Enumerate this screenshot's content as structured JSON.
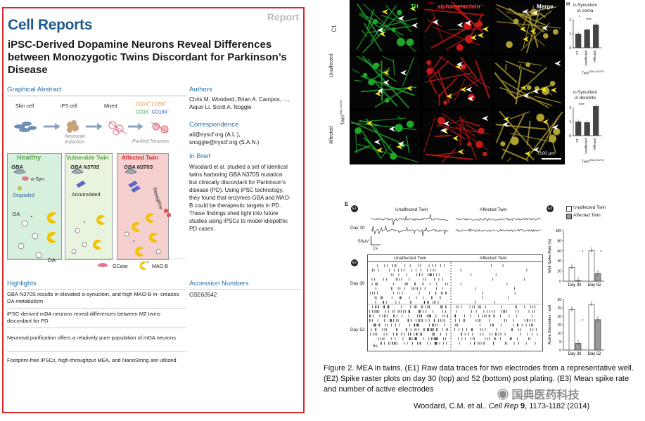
{
  "paper": {
    "journal": "Cell Reports",
    "tag": "Report",
    "title": "iPSC-Derived Dopamine Neurons Reveal Differences between Monozygotic Twins Discordant for Parkinson’s Disease",
    "graphical_abstract_heading": "Graphical Abstract",
    "ga": {
      "skin_cell": "Skin cell",
      "ips_cell": "iPS cell",
      "mixed": "Mixed",
      "neuronal_induction_1": "Neuronal",
      "neuronal_induction_2": "induction",
      "purified_neurons": "Purified  Neurons",
      "markers": [
        "CD24",
        "CD56",
        "CD15",
        "CD184"
      ],
      "panels": [
        {
          "title": "Healthy",
          "gene": "GBA",
          "lines": [
            "α-Syn",
            "Degraded"
          ],
          "da": "DA",
          "color": "#5aa84e"
        },
        {
          "title": "Vulnerable Twin",
          "gene": "GBA N370S",
          "lines": [
            "Accumulated"
          ],
          "da": "",
          "color": "#5aa84e"
        },
        {
          "title": "Affected Twin",
          "gene": "GBA N370S",
          "lines": [
            "Rasagiline"
          ],
          "da": "",
          "color": "#d9262c"
        }
      ],
      "bottom_da": "DA",
      "legend_gcase": "GCase",
      "legend_maob": "MAO-B"
    },
    "authors_heading": "Authors",
    "authors_line1": "Chris M. Woodard, Brian A. Campos, ...,",
    "authors_line2": "Aiqun Li, Scott A. Noggle",
    "correspondence_heading": "Correspondence",
    "correspondence_line1": "ali@nyscf.org (A.L.),",
    "correspondence_line2": "snoggle@nyscf.org (S.A.N.)",
    "in_brief_heading": "In Brief",
    "in_brief_lines": [
      "Woodard et al. studied a set of identical",
      "twins harboring GBA N370S mutation",
      "but clinically discordant for Parkinson’s",
      "disease (PD). Using iPSC technology,",
      "they found that enzymes GBA and MAO-",
      "B could be therapeutic targets in PD.",
      "These findings shed light into future",
      "studies using iPSCs to model idiopathic",
      "PD cases."
    ],
    "highlights_heading": "Highlights",
    "highlights": [
      "GBA N370S results in elevated α-synuclein, and high MAO-B in- creases DA metabolism",
      "iPSC-derived mDA neurons reveal differences between MZ twins discordant for PD",
      "Neuronal purification offers a relatively pure population of mDA neurons",
      "Footprint-free iPSCs, high-throughput MEA, and NanoString are utilized"
    ],
    "accession_heading": "Accession Numbers",
    "accession": "GSE62642"
  },
  "figure_g": {
    "panel_letter": "G",
    "col_labels": [
      "TH",
      "alpha-synuclein",
      "Merge"
    ],
    "col_colors": [
      "#3fd14a",
      "#ff4040",
      "#ffffff"
    ],
    "row_labels": [
      "C1",
      "Unaffected",
      "Affected"
    ],
    "twin_label": "Twin",
    "twin_sup": "GBA N370S",
    "scale_bar": "100 μm"
  },
  "figure_h": {
    "panel_letter": "H",
    "soma_title_1": "α-Synuclein",
    "soma_title_2": "in soma",
    "dendrite_title_1": "α-Synuclein",
    "dendrite_title_2": "in dendrite",
    "twin_label": "Twin",
    "twin_sup": "GBA N370S",
    "categories": [
      "C1",
      "Unaffected",
      "Affected"
    ],
    "soma_sig": [
      "*",
      "****"
    ],
    "dendrite_sig": "****"
  },
  "figure_e": {
    "panel_letter": "E",
    "e1": "E1",
    "e2": "E2",
    "e3": "E3",
    "unaffected": "Unaffected Twin",
    "affected": "Affected Twin",
    "day30": "Day 30",
    "day52": "Day 52",
    "scale_v": "50μV",
    "scale_t1": "1s",
    "scale_t2": "5s",
    "legend": [
      "Unaffected Twin",
      "Affected Twin"
    ]
  },
  "chart_data": [
    {
      "type": "bar",
      "title": "α-Synuclein in soma",
      "categories": [
        "C1",
        "Unaffected",
        "Affected"
      ],
      "values": [
        1.0,
        1.3,
        1.65
      ],
      "ylim": [
        0,
        2
      ],
      "yticks": [
        "0",
        "1",
        "2"
      ],
      "significance": [
        "*",
        "****"
      ]
    },
    {
      "type": "bar",
      "title": "α-Synuclein in dendrite",
      "categories": [
        "C1",
        "Unaffected",
        "Affected"
      ],
      "values": [
        1.0,
        0.95,
        2.1
      ],
      "ylim": [
        0,
        2
      ],
      "yticks": [
        "0",
        "1",
        "2"
      ],
      "significance": [
        "****"
      ]
    },
    {
      "type": "bar",
      "ylabel": "Well Spike Rate (/s)",
      "categories": [
        "Day 30",
        "Day 52"
      ],
      "ylim": [
        0,
        100
      ],
      "yticks": [
        "0",
        "20",
        "40",
        "60",
        "80",
        "100"
      ],
      "series": [
        {
          "name": "Unaffected Twin",
          "values": [
            27,
            60
          ]
        },
        {
          "name": "Affected Twin",
          "values": [
            1,
            15
          ]
        }
      ],
      "significance": [
        "*",
        "*"
      ]
    },
    {
      "type": "bar",
      "ylabel": "Active Electrodes / well",
      "categories": [
        "Day 30",
        "Day 52"
      ],
      "ylim": [
        0,
        30
      ],
      "yticks": [
        "0",
        "5",
        "10",
        "15",
        "20",
        "25",
        "30"
      ],
      "series": [
        {
          "name": "Unaffected Twin",
          "values": [
            24,
            27
          ]
        },
        {
          "name": "Affected Twin",
          "values": [
            4,
            18
          ]
        }
      ],
      "significance": [
        "*"
      ]
    }
  ],
  "caption": "Figure 2. MEA in twins. (E1) Raw data traces for two electrodes from a representative well. (E2) Spike raster plots on day 30 (top) and 52 (bottom) post plating. (E3) Mean spike rate and number of active electrodes",
  "citation_authors": "Woodard, C.M. et al.. ",
  "citation_journal": "Cell Rep",
  "citation_volume": "9",
  "citation_rest": ", 1173-1182  (2014)",
  "watermark": "国典医药科技"
}
